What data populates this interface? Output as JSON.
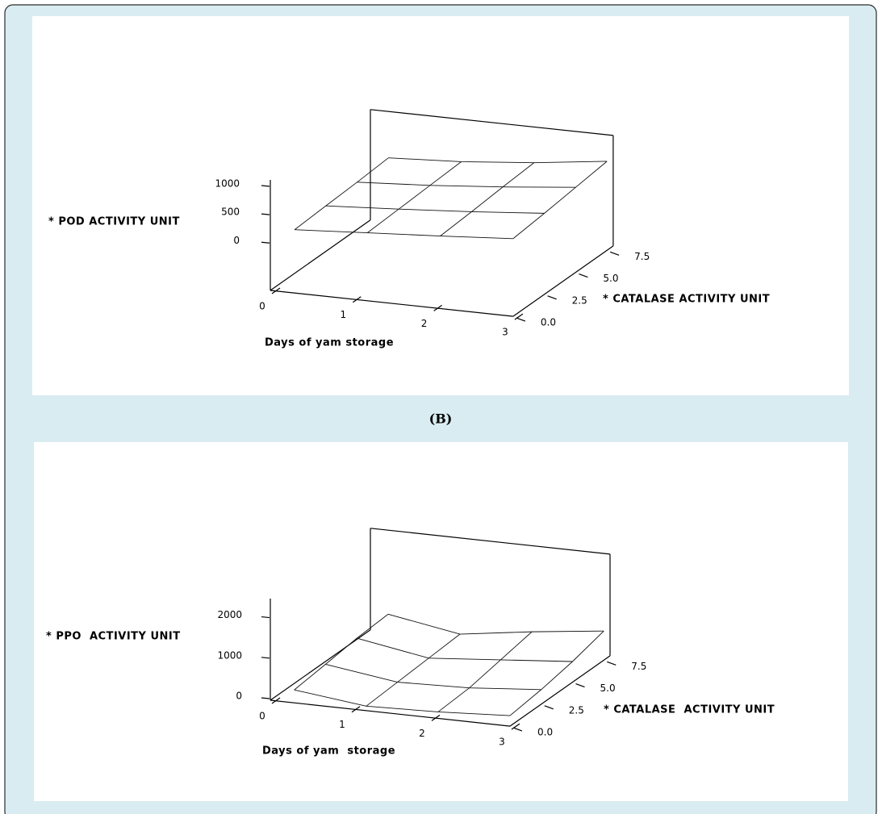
{
  "caption": "(B)",
  "chart_data": [
    {
      "type": "surface",
      "x_label": "Days of yam storage",
      "y_label": "* CATALASE ACTIVITY UNIT",
      "z_label": "* POD ACTIVITY UNIT",
      "xlim": [
        0,
        3
      ],
      "ylim": [
        0,
        8
      ],
      "zlim": [
        -850,
        1100
      ],
      "xticks": [
        0,
        1,
        2,
        3
      ],
      "yticks": [
        {
          "value": 0,
          "label": "0.0"
        },
        2.5,
        {
          "value": 5,
          "label": "5.0"
        },
        7.5
      ],
      "zticks": [
        0,
        500,
        1000
      ],
      "x": [
        0.3,
        1.2,
        2.1,
        3
      ],
      "y": [
        0,
        2.5,
        5,
        7.5
      ],
      "z": [
        [
          267,
          350,
          430,
          521
        ],
        [
          300,
          380,
          470,
          580
        ],
        [
          330,
          410,
          520,
          650
        ],
        [
          371,
          440,
          560,
          721
        ]
      ]
    },
    {
      "type": "surface",
      "x_label": "Days of yam  storage",
      "y_label": "* CATALASE  ACTIVITY UNIT",
      "z_label": "* PPO  ACTIVITY UNIT",
      "xlim": [
        0,
        3
      ],
      "ylim": [
        0,
        8
      ],
      "zlim": [
        -60,
        2450
      ],
      "xticks": [
        0,
        1,
        2,
        3
      ],
      "yticks": [
        {
          "value": 0,
          "label": "0.0"
        },
        2.5,
        {
          "value": 5,
          "label": "5.0"
        },
        7.5
      ],
      "zticks": [
        0,
        1000,
        2000
      ],
      "x": [
        0.3,
        1.2,
        2.1,
        3
      ],
      "y": [
        0,
        2.5,
        5,
        7.5
      ],
      "z": [
        [
          260,
          50,
          100,
          200
        ],
        [
          350,
          100,
          150,
          300
        ],
        [
          450,
          150,
          300,
          450
        ],
        [
          500,
          200,
          450,
          660
        ]
      ]
    }
  ]
}
